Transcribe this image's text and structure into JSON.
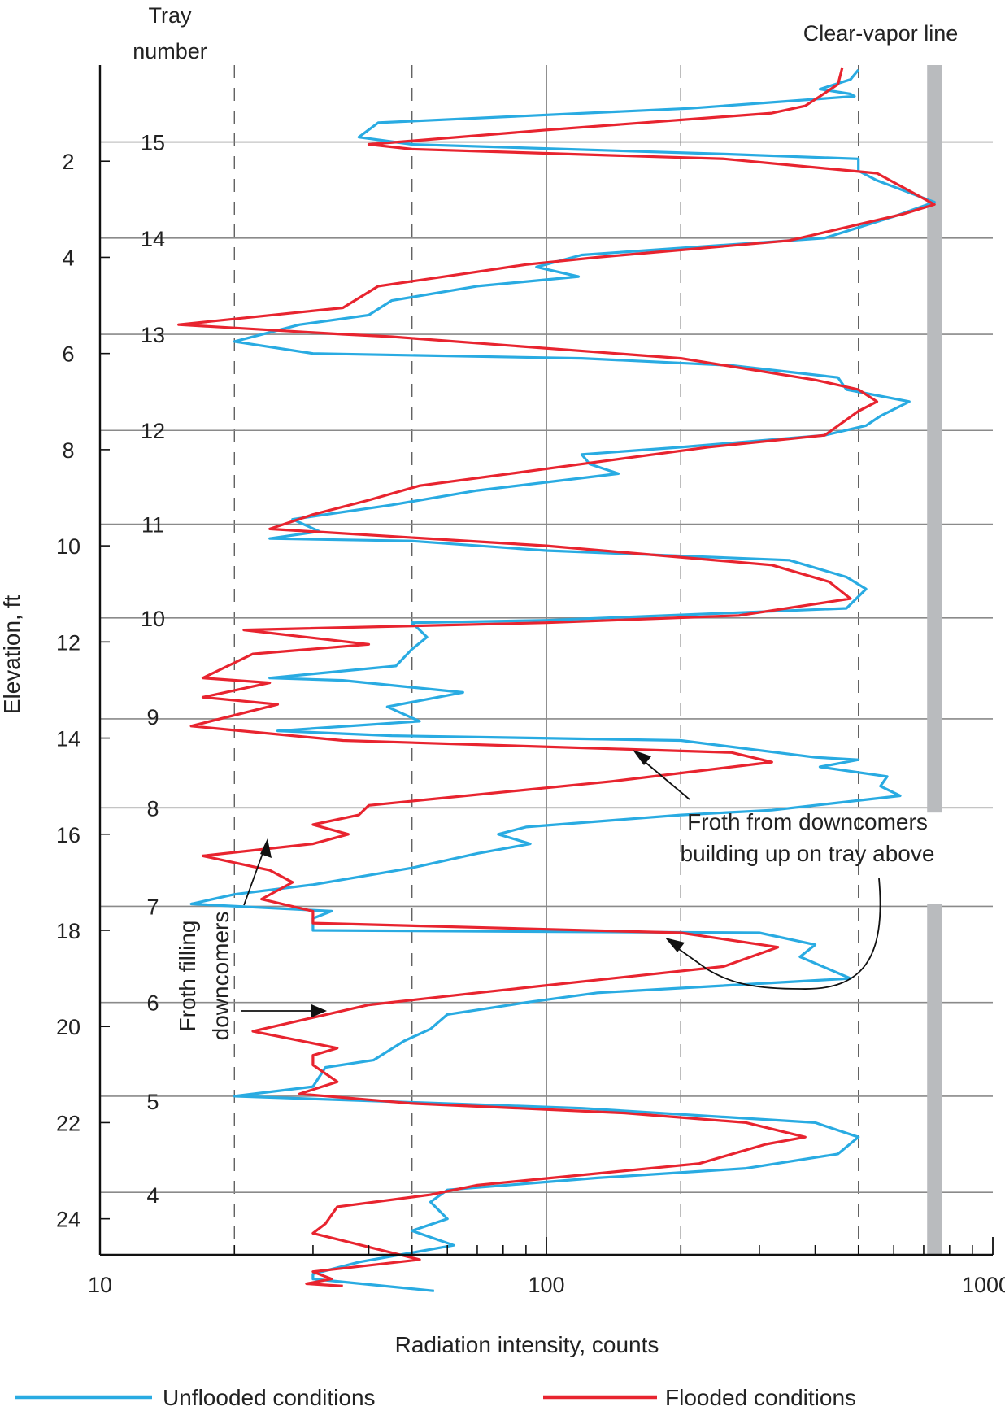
{
  "chart_data": {
    "type": "line",
    "orientation": "vertical-profile",
    "xlabel": "Radiation intensity, counts",
    "ylabel": "Elevation, ft",
    "xscale": "log",
    "xlim": [
      10,
      1000
    ],
    "ylim": [
      0,
      24.75
    ],
    "x_ticks": [
      {
        "value": 10,
        "label": "10"
      },
      {
        "value": 100,
        "label": "100"
      },
      {
        "value": 1000,
        "label": "1000"
      }
    ],
    "x_minor_ticks": [
      20,
      30,
      40,
      50,
      60,
      70,
      80,
      90,
      200,
      300,
      400,
      500,
      600,
      700,
      800,
      900
    ],
    "dashed_gridlines": [
      20,
      50,
      200,
      500
    ],
    "solid_gridlines": [
      100
    ],
    "y_ticks": [
      {
        "value": 2,
        "label": "2"
      },
      {
        "value": 4,
        "label": "4"
      },
      {
        "value": 6,
        "label": "6"
      },
      {
        "value": 8,
        "label": "8"
      },
      {
        "value": 10,
        "label": "10"
      },
      {
        "value": 12,
        "label": "12"
      },
      {
        "value": 14,
        "label": "14"
      },
      {
        "value": 16,
        "label": "16"
      },
      {
        "value": 18,
        "label": "18"
      },
      {
        "value": 20,
        "label": "20"
      },
      {
        "value": 22,
        "label": "22"
      },
      {
        "value": 24,
        "label": "24"
      }
    ],
    "tray_header": [
      "Tray",
      "number"
    ],
    "trays": [
      {
        "label": "15",
        "elevation": 1.6
      },
      {
        "label": "14",
        "elevation": 3.6
      },
      {
        "label": "13",
        "elevation": 5.6
      },
      {
        "label": "12",
        "elevation": 7.6
      },
      {
        "label": "11",
        "elevation": 9.55
      },
      {
        "label": "10",
        "elevation": 11.5
      },
      {
        "label": "9",
        "elevation": 13.55
      },
      {
        "label": "8",
        "elevation": 15.45
      },
      {
        "label": "7",
        "elevation": 17.5
      },
      {
        "label": "6",
        "elevation": 19.5
      },
      {
        "label": "5",
        "elevation": 21.55
      },
      {
        "label": "4",
        "elevation": 23.5
      }
    ],
    "tray_lines": [
      1.6,
      3.6,
      5.6,
      7.6,
      9.55,
      11.5,
      13.6,
      15.45,
      17.5,
      19.5,
      21.45,
      23.45
    ],
    "clear_vapor": {
      "label": "Clear-vapor line",
      "x": 740,
      "gap": [
        15.55,
        17.45
      ]
    },
    "legend": [
      {
        "name": "Unflooded conditions",
        "color": "#29abe2"
      },
      {
        "name": "Flooded conditions",
        "color": "#e8242f"
      }
    ],
    "annotations": [
      {
        "lines": [
          "Froth from downcomers",
          "building up on tray above"
        ],
        "name": "froth-buildup-annotation"
      },
      {
        "lines": [
          "Froth filling",
          "downcomers"
        ],
        "name": "froth-filling-annotation"
      }
    ],
    "series": [
      {
        "name": "Unflooded conditions",
        "color": "#29abe2",
        "points": [
          [
            500,
            0.1
          ],
          [
            480,
            0.3
          ],
          [
            410,
            0.5
          ],
          [
            480,
            0.6
          ],
          [
            490,
            0.65
          ],
          [
            210,
            0.9
          ],
          [
            42,
            1.2
          ],
          [
            38,
            1.5
          ],
          [
            50,
            1.65
          ],
          [
            250,
            1.85
          ],
          [
            500,
            1.95
          ],
          [
            500,
            2.2
          ],
          [
            550,
            2.4
          ],
          [
            740,
            2.85
          ],
          [
            600,
            3.15
          ],
          [
            420,
            3.6
          ],
          [
            120,
            3.95
          ],
          [
            95,
            4.2
          ],
          [
            118,
            4.4
          ],
          [
            70,
            4.6
          ],
          [
            45,
            4.9
          ],
          [
            40,
            5.2
          ],
          [
            28,
            5.4
          ],
          [
            20,
            5.75
          ],
          [
            30,
            6.0
          ],
          [
            120,
            6.1
          ],
          [
            260,
            6.25
          ],
          [
            450,
            6.5
          ],
          [
            470,
            6.75
          ],
          [
            650,
            7.0
          ],
          [
            560,
            7.3
          ],
          [
            520,
            7.5
          ],
          [
            420,
            7.7
          ],
          [
            200,
            7.95
          ],
          [
            120,
            8.1
          ],
          [
            125,
            8.3
          ],
          [
            145,
            8.5
          ],
          [
            70,
            8.85
          ],
          [
            45,
            9.15
          ],
          [
            27,
            9.45
          ],
          [
            31,
            9.7
          ],
          [
            24,
            9.85
          ],
          [
            50,
            9.9
          ],
          [
            100,
            10.1
          ],
          [
            350,
            10.3
          ],
          [
            470,
            10.65
          ],
          [
            520,
            10.9
          ],
          [
            470,
            11.3
          ],
          [
            100,
            11.55
          ],
          [
            50,
            11.6
          ],
          [
            54,
            11.9
          ],
          [
            50,
            12.15
          ],
          [
            46,
            12.5
          ],
          [
            24,
            12.75
          ],
          [
            35,
            12.8
          ],
          [
            65,
            13.05
          ],
          [
            44,
            13.35
          ],
          [
            52,
            13.65
          ],
          [
            25,
            13.85
          ],
          [
            45,
            13.95
          ],
          [
            200,
            14.05
          ],
          [
            400,
            14.4
          ],
          [
            500,
            14.45
          ],
          [
            410,
            14.6
          ],
          [
            580,
            14.8
          ],
          [
            560,
            15.0
          ],
          [
            620,
            15.2
          ],
          [
            320,
            15.5
          ],
          [
            200,
            15.6
          ],
          [
            90,
            15.85
          ],
          [
            78,
            16.0
          ],
          [
            92,
            16.2
          ],
          [
            70,
            16.4
          ],
          [
            50,
            16.7
          ],
          [
            30,
            17.05
          ],
          [
            20,
            17.25
          ],
          [
            16,
            17.45
          ],
          [
            33,
            17.6
          ],
          [
            30,
            17.75
          ],
          [
            30,
            18.0
          ],
          [
            300,
            18.05
          ],
          [
            400,
            18.3
          ],
          [
            370,
            18.55
          ],
          [
            480,
            19.0
          ],
          [
            130,
            19.3
          ],
          [
            90,
            19.5
          ],
          [
            60,
            19.75
          ],
          [
            55,
            20.05
          ],
          [
            48,
            20.3
          ],
          [
            41,
            20.7
          ],
          [
            32,
            20.85
          ],
          [
            30,
            21.25
          ],
          [
            20,
            21.45
          ],
          [
            120,
            21.7
          ],
          [
            400,
            22.0
          ],
          [
            500,
            22.3
          ],
          [
            450,
            22.65
          ],
          [
            280,
            22.95
          ],
          [
            130,
            23.15
          ],
          [
            60,
            23.4
          ],
          [
            55,
            23.65
          ],
          [
            60,
            24.0
          ],
          [
            50,
            24.25
          ],
          [
            62,
            24.55
          ],
          [
            38,
            24.9
          ],
          [
            30,
            25.15
          ],
          [
            30,
            25.25
          ],
          [
            56,
            25.5
          ]
        ]
      },
      {
        "name": "Flooded conditions",
        "color": "#e8242f",
        "points": [
          [
            460,
            0.05
          ],
          [
            450,
            0.4
          ],
          [
            410,
            0.65
          ],
          [
            380,
            0.85
          ],
          [
            320,
            1.0
          ],
          [
            100,
            1.35
          ],
          [
            40,
            1.65
          ],
          [
            50,
            1.75
          ],
          [
            250,
            1.95
          ],
          [
            550,
            2.25
          ],
          [
            740,
            2.9
          ],
          [
            630,
            3.1
          ],
          [
            350,
            3.65
          ],
          [
            130,
            4.0
          ],
          [
            90,
            4.15
          ],
          [
            70,
            4.3
          ],
          [
            42,
            4.6
          ],
          [
            35,
            5.05
          ],
          [
            15,
            5.4
          ],
          [
            35,
            5.6
          ],
          [
            45,
            5.65
          ],
          [
            200,
            6.1
          ],
          [
            400,
            6.55
          ],
          [
            500,
            6.75
          ],
          [
            550,
            7.0
          ],
          [
            500,
            7.2
          ],
          [
            420,
            7.7
          ],
          [
            230,
            7.95
          ],
          [
            120,
            8.3
          ],
          [
            52,
            8.75
          ],
          [
            40,
            9.05
          ],
          [
            30,
            9.35
          ],
          [
            24,
            9.65
          ],
          [
            100,
            10.0
          ],
          [
            320,
            10.4
          ],
          [
            430,
            10.75
          ],
          [
            480,
            11.1
          ],
          [
            270,
            11.45
          ],
          [
            100,
            11.6
          ],
          [
            21,
            11.75
          ],
          [
            40,
            12.05
          ],
          [
            22,
            12.25
          ],
          [
            17,
            12.75
          ],
          [
            24,
            12.85
          ],
          [
            17,
            13.15
          ],
          [
            25,
            13.3
          ],
          [
            16,
            13.75
          ],
          [
            35,
            14.05
          ],
          [
            260,
            14.3
          ],
          [
            320,
            14.5
          ],
          [
            140,
            14.9
          ],
          [
            40,
            15.4
          ],
          [
            38,
            15.6
          ],
          [
            30,
            15.8
          ],
          [
            36,
            16.0
          ],
          [
            30,
            16.2
          ],
          [
            17,
            16.45
          ],
          [
            24,
            16.75
          ],
          [
            27,
            17.0
          ],
          [
            23,
            17.35
          ],
          [
            30,
            17.6
          ],
          [
            30,
            17.85
          ],
          [
            200,
            18.05
          ],
          [
            330,
            18.35
          ],
          [
            250,
            18.75
          ],
          [
            70,
            19.3
          ],
          [
            40,
            19.55
          ],
          [
            22,
            20.1
          ],
          [
            34,
            20.45
          ],
          [
            30,
            20.6
          ],
          [
            30,
            20.8
          ],
          [
            34,
            21.15
          ],
          [
            28,
            21.4
          ],
          [
            50,
            21.6
          ],
          [
            150,
            21.8
          ],
          [
            280,
            22.0
          ],
          [
            380,
            22.3
          ],
          [
            310,
            22.45
          ],
          [
            220,
            22.85
          ],
          [
            70,
            23.3
          ],
          [
            55,
            23.5
          ],
          [
            34,
            23.75
          ],
          [
            32,
            24.1
          ],
          [
            30,
            24.3
          ],
          [
            52,
            24.85
          ],
          [
            30,
            25.1
          ],
          [
            33,
            25.25
          ],
          [
            29,
            25.35
          ],
          [
            35,
            25.4
          ]
        ]
      }
    ]
  }
}
